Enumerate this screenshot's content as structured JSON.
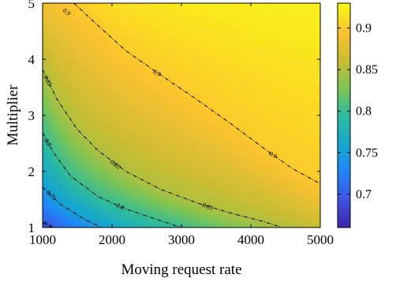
{
  "chart_data": {
    "type": "heatmap",
    "title": "",
    "xlabel": "Moving request rate",
    "ylabel": "Multiplier",
    "xlim": [
      1000,
      5000
    ],
    "ylim": [
      1,
      5
    ],
    "xticks": [
      "1000",
      "2000",
      "3000",
      "4000",
      "5000"
    ],
    "yticks": [
      "1",
      "2",
      "3",
      "4",
      "5"
    ],
    "colorbar": {
      "range": [
        0.66,
        0.93
      ],
      "ticks": [
        "0.7",
        "0.75",
        "0.8",
        "0.85",
        "0.9"
      ],
      "colormap": "parula"
    },
    "grid": false,
    "contours": [
      {
        "level": 0.7,
        "label": "0.7",
        "points": [
          [
            1000,
            1.1
          ],
          [
            1150,
            1.0
          ]
        ]
      },
      {
        "level": 0.75,
        "label": "0.75",
        "points": [
          [
            1000,
            1.72
          ],
          [
            1250,
            1.42
          ],
          [
            1600,
            1.15
          ],
          [
            1850,
            1.0
          ]
        ]
      },
      {
        "level": 0.8,
        "label": "0.8",
        "points": [
          [
            1000,
            2.69
          ],
          [
            1150,
            2.35
          ],
          [
            1400,
            1.92
          ],
          [
            1800,
            1.55
          ],
          [
            2200,
            1.33
          ],
          [
            2700,
            1.12
          ],
          [
            3000,
            1.0
          ]
        ]
      },
      {
        "level": 0.85,
        "label": "0.85",
        "points": [
          [
            1000,
            3.82
          ],
          [
            1200,
            3.3
          ],
          [
            1500,
            2.75
          ],
          [
            1800,
            2.37
          ],
          [
            2200,
            2.0
          ],
          [
            2700,
            1.68
          ],
          [
            3200,
            1.45
          ],
          [
            3700,
            1.26
          ],
          [
            4200,
            1.1
          ],
          [
            4450,
            1.0
          ]
        ]
      },
      {
        "level": 0.9,
        "label": "0.9",
        "points": [
          [
            1450,
            5.0
          ],
          [
            1800,
            4.6
          ],
          [
            2200,
            4.15
          ],
          [
            2700,
            3.72
          ],
          [
            3200,
            3.3
          ],
          [
            3700,
            2.86
          ],
          [
            4200,
            2.4
          ],
          [
            4600,
            2.05
          ],
          [
            5000,
            1.78
          ]
        ]
      }
    ]
  }
}
